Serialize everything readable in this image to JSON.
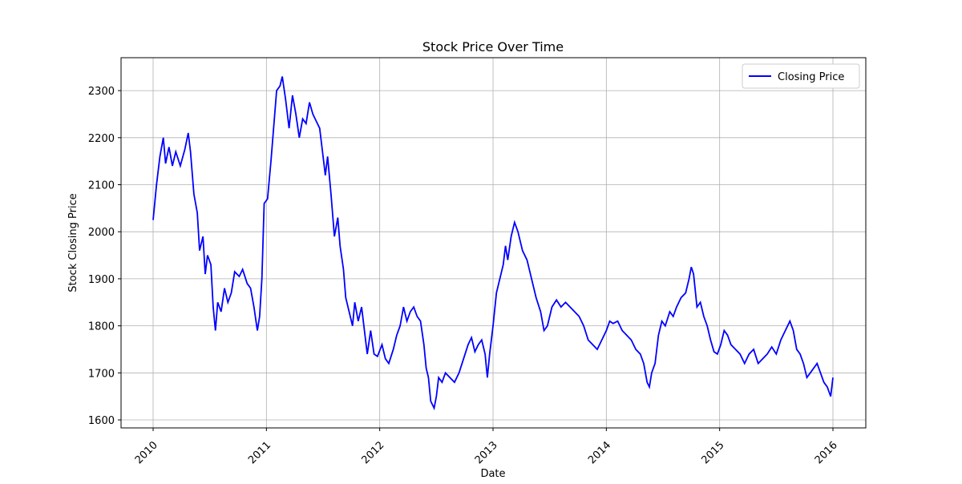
{
  "chart_data": {
    "type": "line",
    "title": "Stock Price Over Time",
    "xlabel": "Date",
    "ylabel": "Stock Closing Price",
    "x": [
      2010.0,
      2010.03,
      2010.06,
      2010.09,
      2010.11,
      2010.14,
      2010.17,
      2010.2,
      2010.24,
      2010.28,
      2010.31,
      2010.33,
      2010.36,
      2010.39,
      2010.41,
      2010.44,
      2010.46,
      2010.48,
      2010.51,
      2010.53,
      2010.55,
      2010.57,
      2010.6,
      2010.63,
      2010.66,
      2010.69,
      2010.72,
      2010.76,
      2010.79,
      2010.83,
      2010.86,
      2010.89,
      2010.92,
      2010.94,
      2010.96,
      2010.98,
      2011.01,
      2011.04,
      2011.07,
      2011.09,
      2011.12,
      2011.14,
      2011.17,
      2011.2,
      2011.23,
      2011.26,
      2011.29,
      2011.32,
      2011.35,
      2011.38,
      2011.41,
      2011.44,
      2011.47,
      2011.49,
      2011.52,
      2011.54,
      2011.57,
      2011.6,
      2011.63,
      2011.65,
      2011.68,
      2011.7,
      2011.73,
      2011.76,
      2011.78,
      2011.81,
      2011.84,
      2011.87,
      2011.89,
      2011.92,
      2011.95,
      2011.98,
      2012.02,
      2012.05,
      2012.08,
      2012.12,
      2012.15,
      2012.18,
      2012.21,
      2012.24,
      2012.27,
      2012.3,
      2012.33,
      2012.36,
      2012.39,
      2012.41,
      2012.43,
      2012.45,
      2012.48,
      2012.5,
      2012.52,
      2012.55,
      2012.58,
      2012.62,
      2012.66,
      2012.7,
      2012.74,
      2012.78,
      2012.81,
      2012.84,
      2012.87,
      2012.9,
      2012.93,
      2012.95,
      2012.97,
      2013.0,
      2013.03,
      2013.06,
      2013.09,
      2013.11,
      2013.13,
      2013.16,
      2013.19,
      2013.22,
      2013.26,
      2013.3,
      2013.34,
      2013.38,
      2013.42,
      2013.45,
      2013.48,
      2013.52,
      2013.56,
      2013.6,
      2013.64,
      2013.68,
      2013.72,
      2013.76,
      2013.8,
      2013.84,
      2013.88,
      2013.92,
      2013.96,
      2014.0,
      2014.03,
      2014.06,
      2014.1,
      2014.14,
      2014.18,
      2014.22,
      2014.26,
      2014.3,
      2014.33,
      2014.36,
      2014.38,
      2014.4,
      2014.43,
      2014.46,
      2014.49,
      2014.52,
      2014.56,
      2014.59,
      2014.62,
      2014.66,
      2014.7,
      2014.73,
      2014.75,
      2014.77,
      2014.8,
      2014.83,
      2014.86,
      2014.89,
      2014.92,
      2014.95,
      2014.98,
      2015.01,
      2015.04,
      2015.07,
      2015.1,
      2015.14,
      2015.18,
      2015.22,
      2015.26,
      2015.3,
      2015.34,
      2015.38,
      2015.42,
      2015.46,
      2015.5,
      2015.54,
      2015.58,
      2015.62,
      2015.65,
      2015.68,
      2015.71,
      2015.74,
      2015.77,
      2015.8,
      2015.83,
      2015.86,
      2015.89,
      2015.92,
      2015.95,
      2015.98,
      2016.0
    ],
    "series": [
      {
        "name": "Closing Price",
        "color": "#0000ff",
        "values": [
          2025,
          2100,
          2160,
          2200,
          2145,
          2180,
          2140,
          2170,
          2140,
          2175,
          2210,
          2170,
          2080,
          2040,
          1960,
          1990,
          1910,
          1950,
          1930,
          1840,
          1790,
          1850,
          1830,
          1880,
          1850,
          1870,
          1915,
          1905,
          1920,
          1890,
          1880,
          1840,
          1790,
          1820,
          1900,
          2060,
          2070,
          2150,
          2240,
          2300,
          2310,
          2330,
          2280,
          2220,
          2290,
          2250,
          2200,
          2240,
          2230,
          2275,
          2250,
          2235,
          2220,
          2180,
          2120,
          2160,
          2080,
          1990,
          2030,
          1970,
          1920,
          1860,
          1830,
          1800,
          1850,
          1810,
          1840,
          1780,
          1740,
          1790,
          1740,
          1735,
          1760,
          1730,
          1720,
          1750,
          1780,
          1800,
          1840,
          1810,
          1830,
          1840,
          1820,
          1810,
          1760,
          1710,
          1690,
          1640,
          1625,
          1650,
          1690,
          1680,
          1700,
          1690,
          1680,
          1700,
          1730,
          1760,
          1775,
          1745,
          1760,
          1770,
          1740,
          1690,
          1740,
          1800,
          1870,
          1900,
          1930,
          1970,
          1940,
          1990,
          2020,
          2000,
          1960,
          1940,
          1900,
          1860,
          1830,
          1790,
          1800,
          1840,
          1855,
          1840,
          1850,
          1840,
          1830,
          1820,
          1800,
          1770,
          1760,
          1750,
          1770,
          1790,
          1810,
          1805,
          1810,
          1790,
          1780,
          1770,
          1750,
          1740,
          1720,
          1680,
          1670,
          1700,
          1720,
          1780,
          1810,
          1800,
          1830,
          1820,
          1840,
          1860,
          1870,
          1900,
          1925,
          1910,
          1840,
          1850,
          1820,
          1800,
          1770,
          1745,
          1740,
          1760,
          1790,
          1780,
          1760,
          1750,
          1740,
          1720,
          1740,
          1750,
          1720,
          1730,
          1740,
          1755,
          1740,
          1770,
          1790,
          1810,
          1790,
          1750,
          1740,
          1720,
          1690,
          1700,
          1710,
          1720,
          1700,
          1680,
          1670,
          1650,
          1690
        ]
      }
    ],
    "xlim": [
      2009.717,
      2016.29
    ],
    "ylim": [
      1583,
      2370
    ],
    "xticks": [
      2010,
      2011,
      2012,
      2013,
      2014,
      2015,
      2016
    ],
    "yticks": [
      1600,
      1700,
      1800,
      1900,
      2000,
      2100,
      2200,
      2300
    ],
    "grid": true,
    "legend": "upper right"
  }
}
